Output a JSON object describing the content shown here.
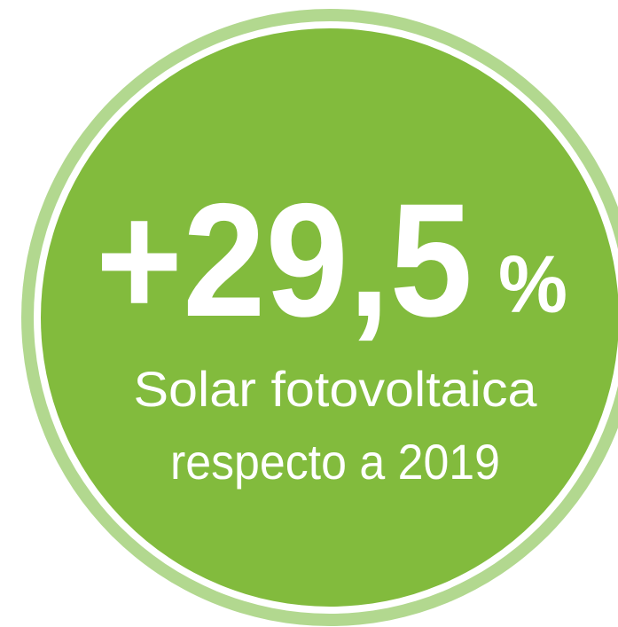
{
  "headline": {
    "value": "+29,5",
    "unit": "%"
  },
  "caption": [
    "Solar fotovoltaica",
    "respecto a 2019"
  ]
}
